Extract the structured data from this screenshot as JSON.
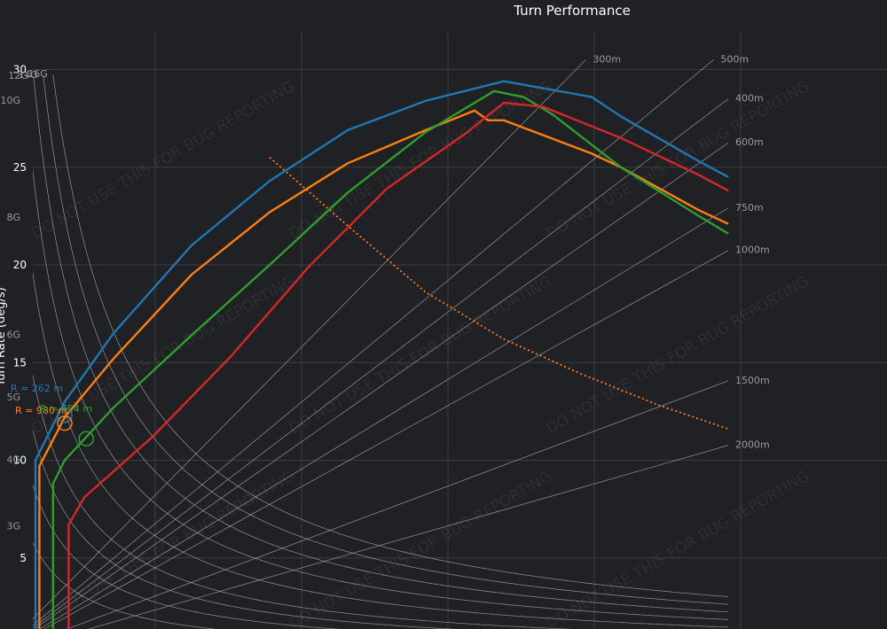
{
  "chart_data": {
    "type": "line",
    "title": "Turn Performance",
    "ylabel": "Turn Rate (deg/s)",
    "xlabel": "",
    "xlim": [
      0,
      360
    ],
    "ylim": [
      0,
      32
    ],
    "y_ticks": [
      5,
      10,
      15,
      20,
      25,
      30
    ],
    "grid": true,
    "series": [
      {
        "color": "#1f77b4",
        "x": [
          0,
          0,
          15,
          40,
          80,
          120,
          160,
          200,
          240,
          285,
          300,
          340,
          355
        ],
        "y": [
          0,
          10,
          13,
          16.5,
          21,
          24.3,
          26.9,
          28.4,
          29.4,
          28.6,
          27.6,
          25.3,
          24.5
        ]
      },
      {
        "color": "#ff7f0e",
        "x": [
          2,
          2,
          15,
          40,
          80,
          120,
          160,
          200,
          225,
          232,
          240,
          285,
          300,
          340,
          355
        ],
        "y": [
          0,
          9.7,
          12.2,
          15.2,
          19.5,
          22.7,
          25.2,
          26.9,
          27.9,
          27.4,
          27.4,
          25.7,
          25,
          22.8,
          22.1
        ]
      },
      {
        "color": "#2ca02c",
        "x": [
          9,
          9,
          15,
          40,
          80,
          120,
          160,
          200,
          235,
          250,
          265,
          300,
          340,
          355
        ],
        "y": [
          0,
          8.8,
          10,
          12.7,
          16.4,
          20,
          23.7,
          26.8,
          28.9,
          28.6,
          27.7,
          25,
          22.5,
          21.6
        ]
      },
      {
        "color": "#d62728",
        "x": [
          17,
          17,
          25,
          60,
          100,
          140,
          180,
          220,
          240,
          260,
          300,
          340,
          355
        ],
        "y": [
          0,
          6.7,
          8.1,
          11.2,
          15.3,
          19.9,
          23.9,
          26.7,
          28.3,
          28.1,
          26.5,
          24.6,
          23.8
        ]
      }
    ],
    "limit_line": {
      "color": "#ff7f0e",
      "style": "dotted",
      "x": [
        120,
        160,
        200,
        240,
        280,
        320,
        355
      ],
      "y": [
        25.5,
        22,
        18.6,
        16.2,
        14.4,
        12.8,
        11.6
      ]
    },
    "g_lines": [
      {
        "label": "3G",
        "k": 165
      },
      {
        "label": "4G",
        "k": 250
      },
      {
        "label": "5G",
        "k": 330
      },
      {
        "label": "6G",
        "k": 410
      },
      {
        "label": "8G",
        "k": 560
      },
      {
        "label": "10G",
        "k": 710
      },
      {
        "label": "12G",
        "k": 860
      },
      {
        "label": "14G",
        "k": 1010
      },
      {
        "label": "16G",
        "k": 1160
      }
    ],
    "radius_lines": [
      {
        "label": "300m",
        "m": 0.101
      },
      {
        "label": "400m",
        "m": 0.076
      },
      {
        "label": "500m",
        "m": 0.083
      },
      {
        "label": "600m",
        "m": 0.07
      },
      {
        "label": "750m",
        "m": 0.0611
      },
      {
        "label": "1000m",
        "m": 0.0553
      },
      {
        "label": "1500m",
        "m": 0.0375
      },
      {
        "label": "2000m",
        "m": 0.0287
      }
    ],
    "annotations": [
      {
        "text": "R = 262 m",
        "color": "#1f77b4",
        "x": 15,
        "y": 12.3
      },
      {
        "text": "R = 980 m",
        "color": "#ff7f0e",
        "x": 15,
        "y": 11.9
      },
      {
        "text": "R = 454 m",
        "color": "#2ca02c",
        "x": 26,
        "y": 11.1
      }
    ],
    "watermark": "DO NOT USE THIS FOR BUG REPORTING"
  }
}
